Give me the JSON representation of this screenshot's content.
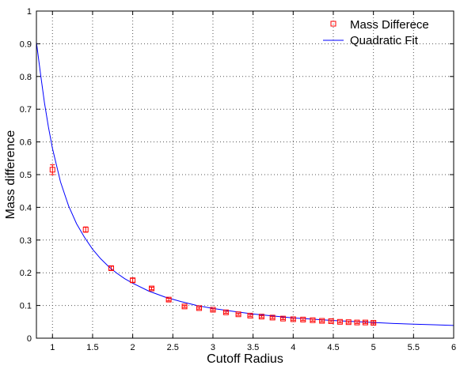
{
  "chart_data": {
    "type": "scatter",
    "title": "",
    "xlabel": "Cutoff Radius",
    "ylabel": "Mass difference",
    "xlim": [
      0.8,
      6
    ],
    "ylim": [
      0,
      1
    ],
    "xticks": [
      1,
      1.5,
      2,
      2.5,
      3,
      3.5,
      4,
      4.5,
      5,
      5.5,
      6
    ],
    "xtick_labels": [
      "1",
      "1.5",
      "2",
      "2.5",
      "3",
      "3.5",
      "4",
      "4.5",
      "5",
      "5.5",
      "6"
    ],
    "yticks": [
      0,
      0.1,
      0.2,
      0.3,
      0.4,
      0.5,
      0.6,
      0.7,
      0.8,
      0.9,
      1
    ],
    "ytick_labels": [
      "0",
      "0.1",
      "0.2",
      "0.3",
      "0.4",
      "0.5",
      "0.6",
      "0.7",
      "0.8",
      "0.9",
      "1"
    ],
    "grid": true,
    "legend_position": "top-right",
    "series": [
      {
        "name": "Mass Differece",
        "kind": "markers-with-errorbars",
        "marker": "square",
        "color": "#ff0000",
        "points": [
          {
            "x": 1.0,
            "y": 0.515,
            "err": 0.015
          },
          {
            "x": 1.414,
            "y": 0.332,
            "err": 0.008
          },
          {
            "x": 1.732,
            "y": 0.214,
            "err": 0.006
          },
          {
            "x": 2.0,
            "y": 0.177,
            "err": 0.006
          },
          {
            "x": 2.236,
            "y": 0.152,
            "err": 0.004
          },
          {
            "x": 2.449,
            "y": 0.118,
            "err": 0.004
          },
          {
            "x": 2.646,
            "y": 0.097,
            "err": 0.003
          },
          {
            "x": 2.828,
            "y": 0.092,
            "err": 0.003
          },
          {
            "x": 3.0,
            "y": 0.087,
            "err": 0.003
          },
          {
            "x": 3.162,
            "y": 0.079,
            "err": 0.003
          },
          {
            "x": 3.317,
            "y": 0.073,
            "err": 0.003
          },
          {
            "x": 3.464,
            "y": 0.069,
            "err": 0.003
          },
          {
            "x": 3.606,
            "y": 0.066,
            "err": 0.003
          },
          {
            "x": 3.742,
            "y": 0.063,
            "err": 0.003
          },
          {
            "x": 3.873,
            "y": 0.06,
            "err": 0.003
          },
          {
            "x": 4.0,
            "y": 0.058,
            "err": 0.003
          },
          {
            "x": 4.123,
            "y": 0.057,
            "err": 0.003
          },
          {
            "x": 4.243,
            "y": 0.055,
            "err": 0.003
          },
          {
            "x": 4.359,
            "y": 0.053,
            "err": 0.003
          },
          {
            "x": 4.472,
            "y": 0.052,
            "err": 0.003
          },
          {
            "x": 4.583,
            "y": 0.05,
            "err": 0.003
          },
          {
            "x": 4.69,
            "y": 0.049,
            "err": 0.003
          },
          {
            "x": 4.796,
            "y": 0.048,
            "err": 0.003
          },
          {
            "x": 4.899,
            "y": 0.048,
            "err": 0.003
          },
          {
            "x": 5.0,
            "y": 0.047,
            "err": 0.003
          }
        ]
      },
      {
        "name": "Quadratic Fit",
        "kind": "line",
        "color": "#0000ff",
        "points": [
          {
            "x": 0.8,
            "y": 0.905
          },
          {
            "x": 0.85,
            "y": 0.81
          },
          {
            "x": 0.9,
            "y": 0.72
          },
          {
            "x": 0.95,
            "y": 0.645
          },
          {
            "x": 1.0,
            "y": 0.58
          },
          {
            "x": 1.1,
            "y": 0.478
          },
          {
            "x": 1.2,
            "y": 0.405
          },
          {
            "x": 1.3,
            "y": 0.35
          },
          {
            "x": 1.4,
            "y": 0.308
          },
          {
            "x": 1.5,
            "y": 0.272
          },
          {
            "x": 1.6,
            "y": 0.243
          },
          {
            "x": 1.7,
            "y": 0.219
          },
          {
            "x": 1.8,
            "y": 0.199
          },
          {
            "x": 1.9,
            "y": 0.182
          },
          {
            "x": 2.0,
            "y": 0.168
          },
          {
            "x": 2.2,
            "y": 0.144
          },
          {
            "x": 2.4,
            "y": 0.126
          },
          {
            "x": 2.6,
            "y": 0.112
          },
          {
            "x": 2.8,
            "y": 0.1
          },
          {
            "x": 3.0,
            "y": 0.091
          },
          {
            "x": 3.25,
            "y": 0.082
          },
          {
            "x": 3.5,
            "y": 0.074
          },
          {
            "x": 3.75,
            "y": 0.068
          },
          {
            "x": 4.0,
            "y": 0.062
          },
          {
            "x": 4.25,
            "y": 0.058
          },
          {
            "x": 4.5,
            "y": 0.054
          },
          {
            "x": 4.75,
            "y": 0.051
          },
          {
            "x": 5.0,
            "y": 0.048
          },
          {
            "x": 5.25,
            "y": 0.045
          },
          {
            "x": 5.5,
            "y": 0.043
          },
          {
            "x": 5.75,
            "y": 0.041
          },
          {
            "x": 6.0,
            "y": 0.039
          }
        ]
      }
    ]
  }
}
